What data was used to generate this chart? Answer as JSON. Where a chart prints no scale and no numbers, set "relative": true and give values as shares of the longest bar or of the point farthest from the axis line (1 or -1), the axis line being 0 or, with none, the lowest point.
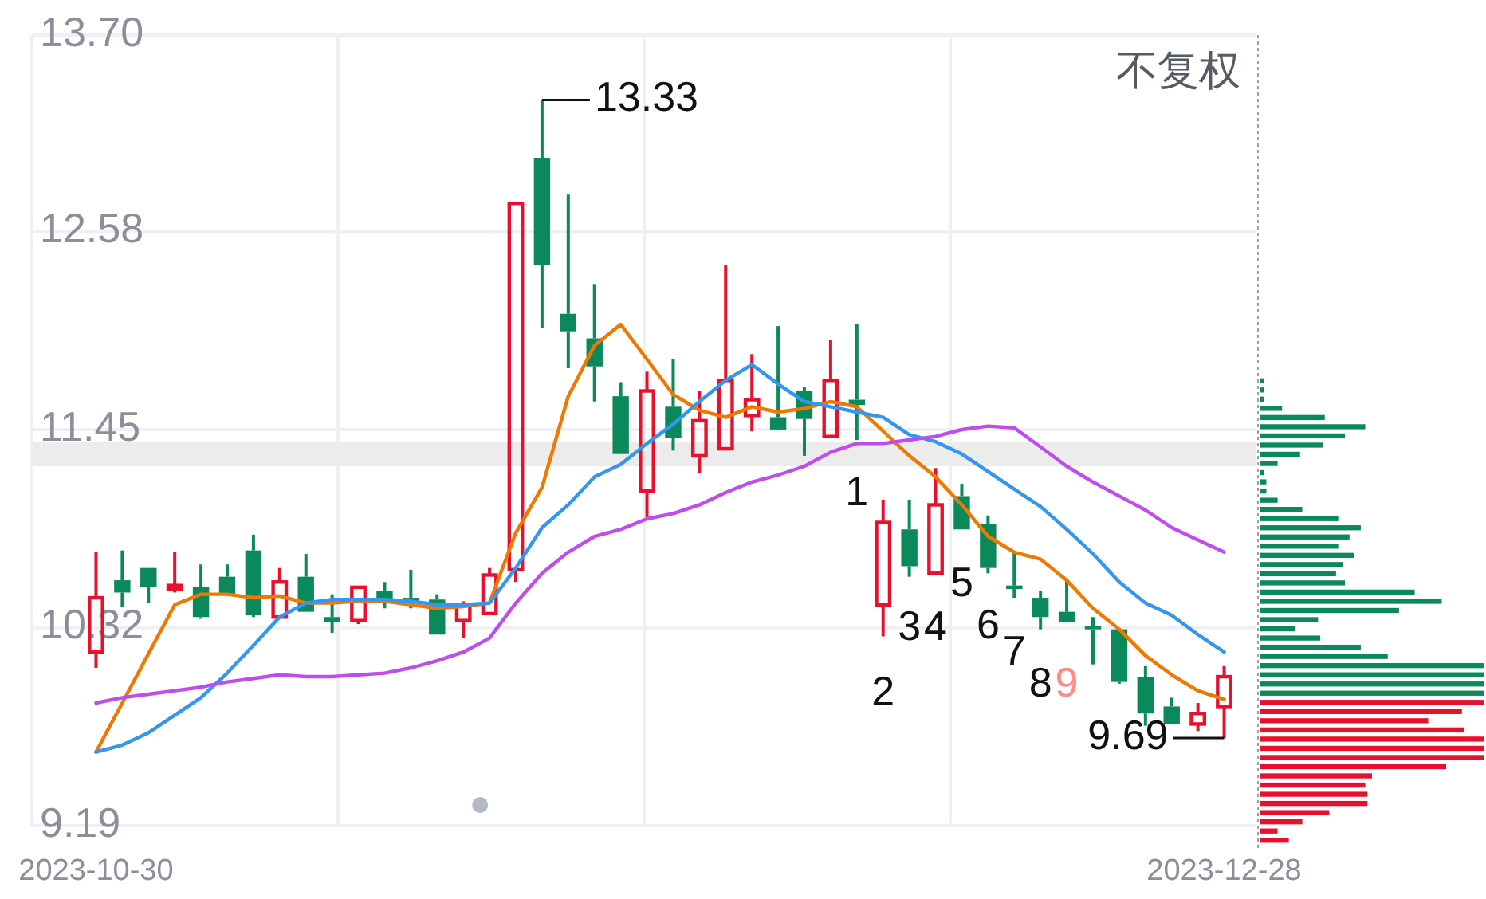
{
  "chart_data": [
    {
      "type": "candlestick",
      "categories": [
        "2023-10-30",
        null,
        null,
        null,
        null,
        null,
        null,
        null,
        null,
        null,
        null,
        null,
        null,
        null,
        null,
        null,
        null,
        null,
        null,
        null,
        null,
        null,
        null,
        null,
        null,
        null,
        null,
        null,
        null,
        null,
        null,
        null,
        null,
        null,
        null,
        null,
        null,
        null,
        null,
        null,
        null,
        null,
        null,
        "2023-12-28"
      ],
      "ohlc": [
        [
          10.18,
          10.75,
          10.09,
          10.49
        ],
        [
          10.59,
          10.76,
          10.44,
          10.52
        ],
        [
          10.66,
          10.66,
          10.46,
          10.55
        ],
        [
          10.54,
          10.75,
          10.52,
          10.56
        ],
        [
          10.55,
          10.68,
          10.37,
          10.38
        ],
        [
          10.61,
          10.68,
          10.51,
          10.51
        ],
        [
          10.76,
          10.85,
          10.38,
          10.39
        ],
        [
          10.38,
          10.66,
          10.38,
          10.58
        ],
        [
          10.61,
          10.74,
          10.41,
          10.41
        ],
        [
          10.38,
          10.51,
          10.29,
          10.35
        ],
        [
          10.36,
          10.55,
          10.34,
          10.55
        ],
        [
          10.53,
          10.58,
          10.43,
          10.48
        ],
        [
          10.49,
          10.65,
          10.43,
          10.48
        ],
        [
          10.48,
          10.51,
          10.28,
          10.28
        ],
        [
          10.36,
          10.47,
          10.26,
          10.45
        ],
        [
          10.4,
          10.66,
          10.4,
          10.62
        ],
        [
          10.65,
          12.74,
          10.58,
          12.74
        ],
        [
          13.0,
          13.33,
          12.03,
          12.39
        ],
        [
          12.11,
          12.79,
          11.8,
          12.01
        ],
        [
          11.97,
          12.28,
          11.61,
          11.81
        ],
        [
          11.64,
          11.72,
          11.31,
          11.31
        ],
        [
          11.1,
          11.78,
          10.95,
          11.67
        ],
        [
          11.58,
          11.85,
          11.33,
          11.4
        ],
        [
          11.3,
          11.67,
          11.2,
          11.5
        ],
        [
          11.34,
          12.39,
          11.34,
          11.73
        ],
        [
          11.53,
          11.88,
          11.44,
          11.62
        ],
        [
          11.52,
          12.04,
          11.45,
          11.45
        ],
        [
          11.67,
          11.69,
          11.3,
          11.51
        ],
        [
          11.41,
          11.96,
          11.41,
          11.73
        ],
        [
          11.62,
          12.05,
          11.39,
          11.59
        ],
        [
          10.45,
          11.05,
          10.27,
          10.92
        ],
        [
          10.88,
          11.05,
          10.61,
          10.67
        ],
        [
          10.63,
          11.23,
          10.63,
          11.02
        ],
        [
          11.07,
          11.14,
          10.88,
          10.88
        ],
        [
          10.91,
          10.96,
          10.63,
          10.66
        ],
        [
          10.56,
          10.75,
          10.49,
          10.54
        ],
        [
          10.49,
          10.53,
          10.31,
          10.38
        ],
        [
          10.41,
          10.6,
          10.35,
          10.35
        ],
        [
          10.33,
          10.38,
          10.11,
          10.31
        ],
        [
          10.31,
          10.31,
          10.0,
          10.01
        ],
        [
          10.04,
          10.1,
          9.76,
          9.83
        ],
        [
          9.87,
          9.92,
          9.77,
          9.77
        ],
        [
          9.77,
          9.89,
          9.73,
          9.83
        ],
        [
          9.87,
          10.1,
          9.69,
          10.04
        ]
      ],
      "colors": [
        "#e8112d",
        "#0a8a5a",
        "#0a8a5a",
        "#e8112d",
        "#0a8a5a",
        "#0a8a5a",
        "#0a8a5a",
        "#e8112d",
        "#0a8a5a",
        "#0a8a5a",
        "#e8112d",
        "#0a8a5a",
        "#0a8a5a",
        "#0a8a5a",
        "#e8112d",
        "#e8112d",
        "#e8112d",
        "#0a8a5a",
        "#0a8a5a",
        "#0a8a5a",
        "#0a8a5a",
        "#e8112d",
        "#0a8a5a",
        "#e8112d",
        "#e8112d",
        "#e8112d",
        "#0a8a5a",
        "#0a8a5a",
        "#e8112d",
        "#0a8a5a",
        "#e8112d",
        "#0a8a5a",
        "#e8112d",
        "#0a8a5a",
        "#0a8a5a",
        "#0a8a5a",
        "#0a8a5a",
        "#0a8a5a",
        "#0a8a5a",
        "#0a8a5a",
        "#0a8a5a",
        "#0a8a5a",
        "#e8112d",
        "#e8112d"
      ],
      "series": [
        {
          "type": "line",
          "color": "#f07800",
          "values": [
            9.61,
            9.89,
            10.17,
            10.45,
            10.51,
            10.51,
            10.49,
            10.5,
            10.46,
            10.46,
            10.47,
            10.47,
            10.45,
            10.43,
            10.44,
            10.46,
            10.86,
            11.12,
            11.64,
            11.93,
            12.05,
            11.85,
            11.65,
            11.56,
            11.52,
            11.58,
            11.55,
            11.57,
            11.61,
            11.58,
            11.44,
            11.3,
            11.18,
            11.02,
            10.84,
            10.75,
            10.71,
            10.59,
            10.43,
            10.31,
            10.16,
            10.05,
            9.96,
            9.91
          ]
        },
        {
          "type": "line",
          "color": "#3396f0",
          "values": [
            9.61,
            9.65,
            9.72,
            9.82,
            9.92,
            10.06,
            10.22,
            10.38,
            10.46,
            10.48,
            10.48,
            10.48,
            10.47,
            10.45,
            10.45,
            10.46,
            10.66,
            10.89,
            11.02,
            11.18,
            11.25,
            11.37,
            11.48,
            11.61,
            11.73,
            11.82,
            11.71,
            11.61,
            11.58,
            11.55,
            11.52,
            11.42,
            11.38,
            11.31,
            11.21,
            11.11,
            11.01,
            10.88,
            10.74,
            10.58,
            10.46,
            10.39,
            10.28,
            10.18
          ]
        },
        {
          "type": "line",
          "color": "#c04bf0",
          "values": [
            9.89,
            9.92,
            9.94,
            9.96,
            9.98,
            10.01,
            10.03,
            10.05,
            10.04,
            10.04,
            10.05,
            10.06,
            10.09,
            10.13,
            10.18,
            10.26,
            10.46,
            10.63,
            10.75,
            10.84,
            10.88,
            10.94,
            10.97,
            11.02,
            11.09,
            11.15,
            11.19,
            11.24,
            11.32,
            11.37,
            11.37,
            11.39,
            11.41,
            11.45,
            11.47,
            11.46,
            11.35,
            11.24,
            11.15,
            11.07,
            10.99,
            10.89,
            10.82,
            10.75
          ]
        }
      ],
      "ylim": [
        9.19,
        13.7
      ],
      "yticks": [
        9.19,
        10.32,
        11.45,
        12.58,
        {
          "value": 13.7,
          "label": "13.70"
        }
      ],
      "grid": true,
      "bands": [
        {
          "axis": "y",
          "from": 11.24,
          "to": 11.38,
          "color": "#ececec"
        }
      ],
      "annotations": [
        "13.33",
        "9.69",
        "1",
        "2",
        "3",
        "4",
        "5",
        "6",
        "7",
        "8",
        "9",
        "不复权"
      ]
    },
    {
      "type": "bar",
      "orientation": "horizontal",
      "relative": true,
      "categories": [
        null,
        null,
        null,
        null,
        null,
        null,
        null,
        null,
        null,
        null,
        null,
        null,
        null,
        null,
        null,
        null,
        null,
        null,
        null,
        null,
        null,
        null,
        null,
        null,
        null,
        null,
        null,
        null,
        null,
        null,
        null,
        null,
        null,
        null,
        null,
        null,
        null,
        null,
        null,
        null,
        null,
        null,
        null,
        null,
        null,
        null,
        null,
        null,
        null,
        null,
        null
      ],
      "values": [
        0.02,
        0.02,
        0.02,
        0.1,
        0.29,
        0.47,
        0.38,
        0.28,
        0.18,
        0.08,
        0.02,
        0.03,
        0.03,
        0.08,
        0.19,
        0.35,
        0.45,
        0.4,
        0.35,
        0.42,
        0.37,
        0.34,
        0.38,
        0.69,
        0.81,
        0.62,
        0.26,
        0.16,
        0.27,
        0.45,
        0.57,
        1,
        1,
        1,
        1,
        1,
        0.9,
        0.75,
        0.91,
        1,
        1,
        1,
        0.83,
        0.5,
        0.47,
        0.48,
        0.48,
        0.31,
        0.19,
        0.08,
        0.13
      ],
      "colors": [
        "#0a8a5a",
        "#0a8a5a",
        "#0a8a5a",
        "#0a8a5a",
        "#0a8a5a",
        "#0a8a5a",
        "#0a8a5a",
        "#0a8a5a",
        "#0a8a5a",
        "#0a8a5a",
        "#0a8a5a",
        "#0a8a5a",
        "#0a8a5a",
        "#0a8a5a",
        "#0a8a5a",
        "#0a8a5a",
        "#0a8a5a",
        "#0a8a5a",
        "#0a8a5a",
        "#0a8a5a",
        "#0a8a5a",
        "#0a8a5a",
        "#0a8a5a",
        "#0a8a5a",
        "#0a8a5a",
        "#0a8a5a",
        "#0a8a5a",
        "#0a8a5a",
        "#0a8a5a",
        "#0a8a5a",
        "#0a8a5a",
        "#0a8a5a",
        "#0a8a5a",
        "#0a8a5a",
        "#0a8a5a",
        "#e8112d",
        "#e8112d",
        "#e8112d",
        "#e8112d",
        "#e8112d",
        "#e8112d",
        "#e8112d",
        "#e8112d",
        "#e8112d",
        "#e8112d",
        "#e8112d",
        "#e8112d",
        "#e8112d",
        "#e8112d",
        "#e8112d",
        "#e8112d"
      ]
    }
  ]
}
